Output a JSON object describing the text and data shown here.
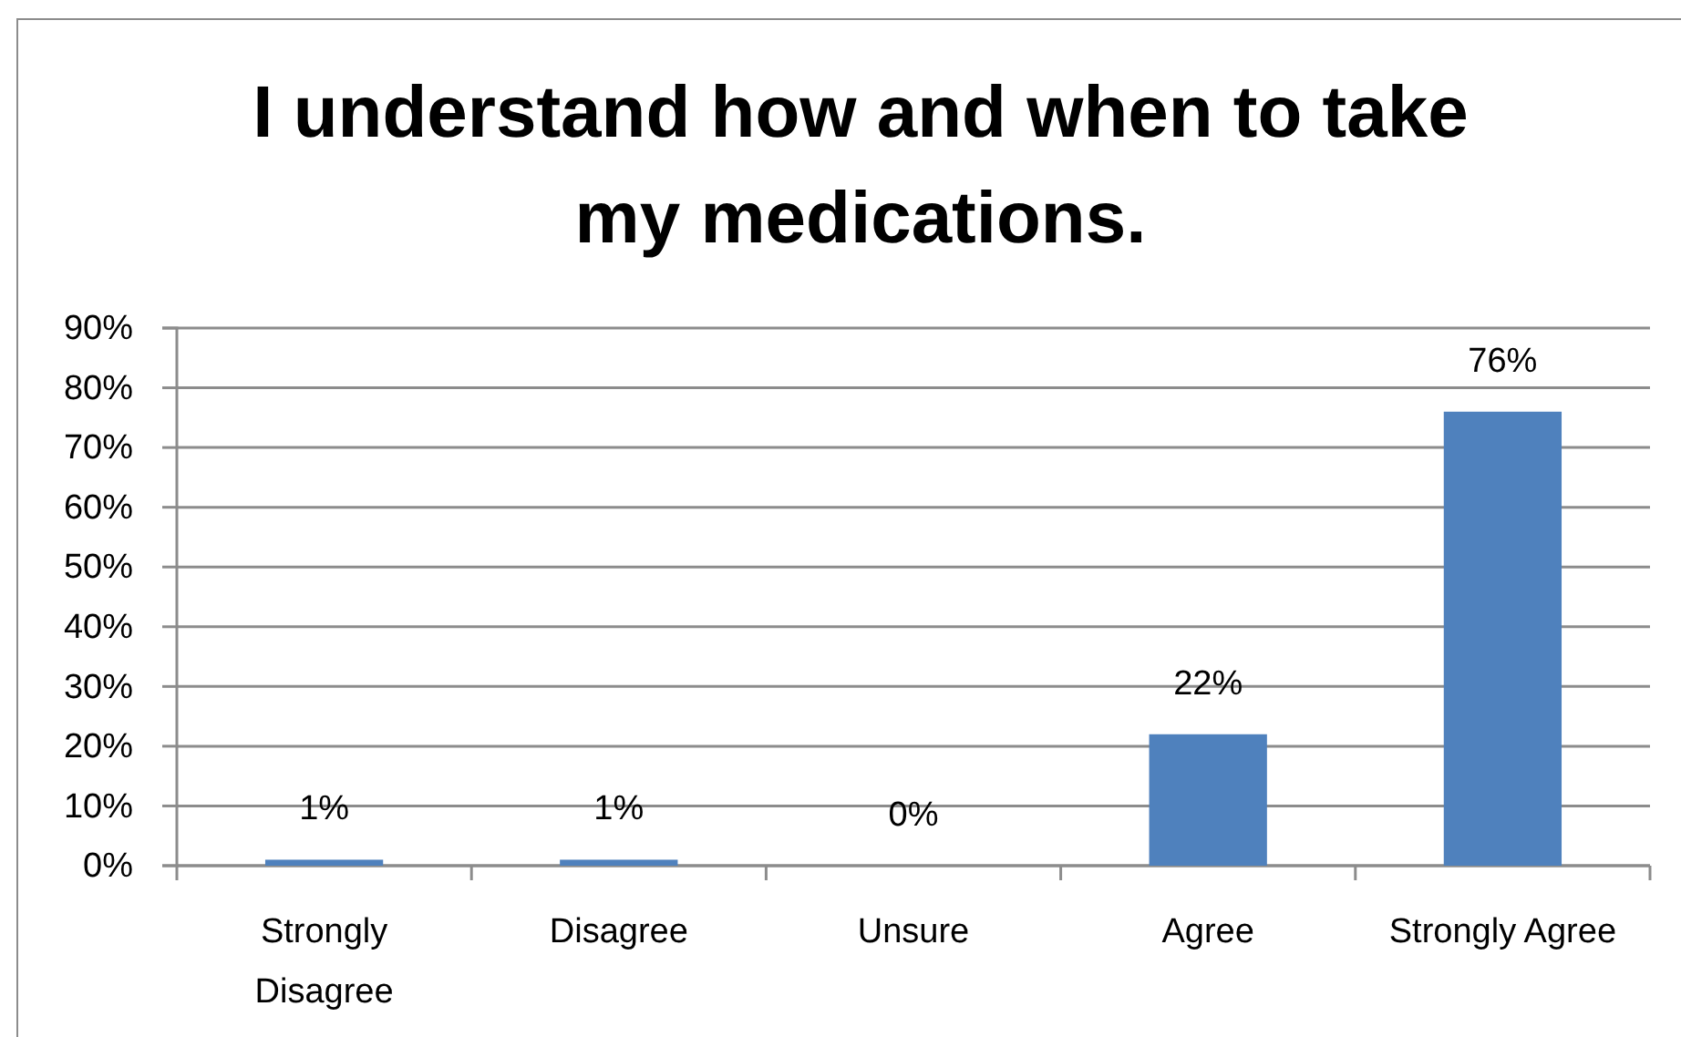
{
  "chart_data": {
    "type": "bar",
    "title": "I understand how and when to take my medications.",
    "categories": [
      "Strongly Disagree",
      "Disagree",
      "Unsure",
      "Agree",
      "Strongly Agree"
    ],
    "values": [
      1,
      1,
      0,
      22,
      76
    ],
    "color": "#4f81bd",
    "value_labels": [
      "1%",
      "1%",
      "0%",
      "22%",
      "76%"
    ],
    "ylim": [
      0,
      90
    ],
    "yticks": [
      {
        "value": 0,
        "label": "0%"
      },
      {
        "value": 10,
        "label": "10%"
      },
      {
        "value": 20,
        "label": "20%"
      },
      {
        "value": 30,
        "label": "30%"
      },
      {
        "value": 40,
        "label": "40%"
      },
      {
        "value": 50,
        "label": "50%"
      },
      {
        "value": 60,
        "label": "60%"
      },
      {
        "value": 70,
        "label": "70%"
      },
      {
        "value": 80,
        "label": "80%"
      },
      {
        "value": 90,
        "label": "90%"
      }
    ],
    "grid": "y"
  }
}
